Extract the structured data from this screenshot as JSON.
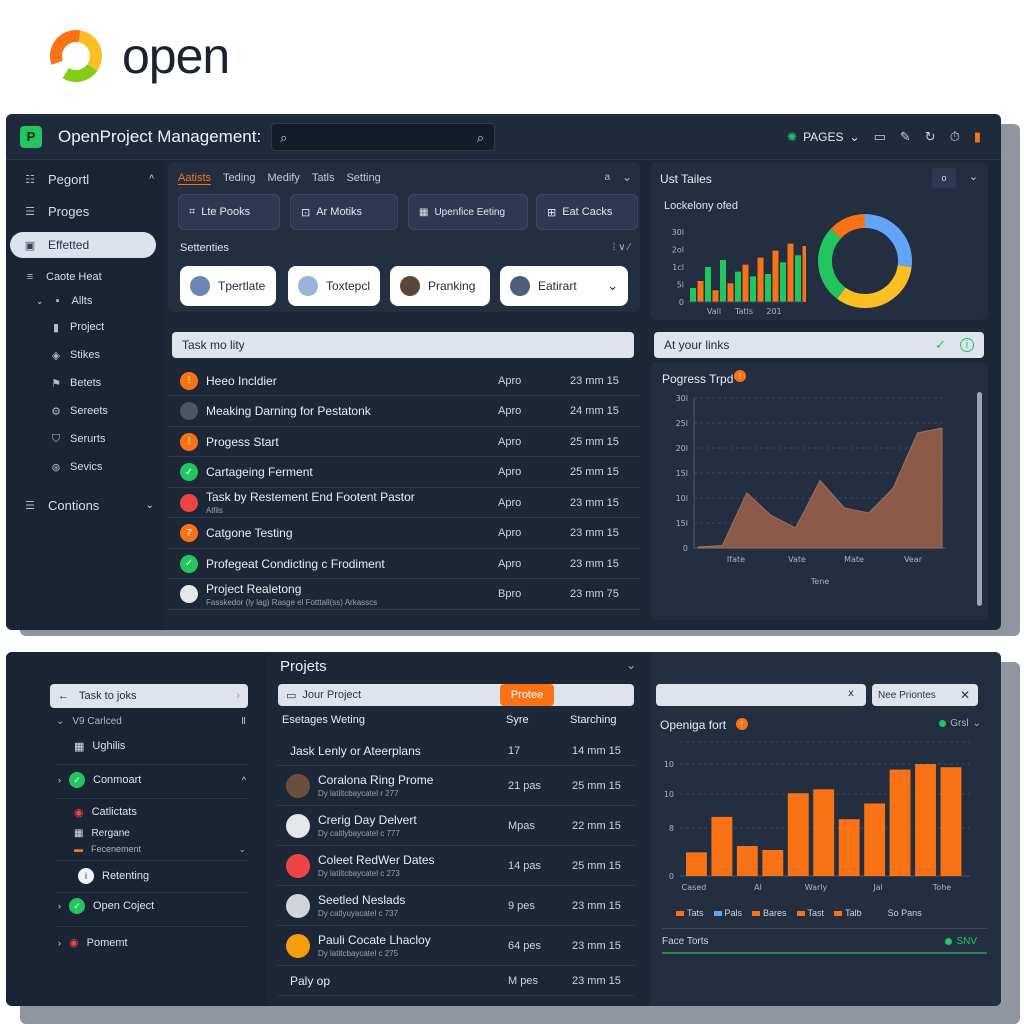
{
  "brand": {
    "name": "open"
  },
  "window": {
    "app_title": "OpenProject Management:",
    "search_placeholder": "",
    "pages_label": "PAGES"
  },
  "sidebar": {
    "items": [
      {
        "label": "Pegortl",
        "arrow": "^"
      },
      {
        "label": "Proges"
      },
      {
        "label": "Effetted"
      },
      {
        "label": "Caote Heat"
      },
      {
        "label": "Allts"
      },
      {
        "label": "Project"
      },
      {
        "label": "Stikes"
      },
      {
        "label": "Betets"
      },
      {
        "label": "Sereets"
      },
      {
        "label": "Serurts"
      },
      {
        "label": "Sevics"
      },
      {
        "label": "Contions"
      }
    ]
  },
  "top_panel": {
    "tabs": [
      "Aatists",
      "Teding",
      "Medify",
      "Tatls",
      "Setting"
    ],
    "chips": [
      "Lte Pooks",
      "Ar Motiks",
      "Upenfice Eeting",
      "Eat Cacks"
    ],
    "settings_label": "Settenties",
    "pills": [
      "Tpertlate",
      "Toxtepcl",
      "Pranking",
      "Eatirart"
    ]
  },
  "tasks": {
    "header": "Task mo lity",
    "rows": [
      {
        "name": "Heeo Incldier",
        "c1": "Apro",
        "c2": "23 mm 15",
        "color": "#f97316",
        "glyph": "!"
      },
      {
        "name": "Meaking Darning for Pestatonk",
        "c1": "Apro",
        "c2": "24 mm 15",
        "color": "#4b5563",
        "glyph": ""
      },
      {
        "name": "Progess Start",
        "c1": "Apro",
        "c2": "25 mm 15",
        "color": "#f97316",
        "glyph": "!"
      },
      {
        "name": "Cartageing Ferment",
        "c1": "Apro",
        "c2": "25 mm 15",
        "color": "#22c55e",
        "glyph": "✓"
      },
      {
        "name": "Task by Restement End Footent Pastor",
        "sub": "Alfils",
        "c1": "Apro",
        "c2": "23 mm 15",
        "color": "#ef4444",
        "glyph": ""
      },
      {
        "name": "Catgone Testing",
        "c1": "Apro",
        "c2": "23 mm 15",
        "color": "#f97316",
        "glyph": "7"
      },
      {
        "name": "Profegeat Condicting c Frodiment",
        "c1": "Apro",
        "c2": "23 mm 15",
        "color": "#22c55e",
        "glyph": "✓"
      },
      {
        "name": "Project Realetong",
        "sub": "Fasskedor (ly lag) Rasge el Fotttall(ss) Arkasscs",
        "c1": "Bpro",
        "c2": "23 mm 75",
        "color": "#e5e7eb",
        "glyph": ""
      }
    ]
  },
  "donut_panel": {
    "title": "Ust Tailes",
    "chart_title": "Lockelony ofed",
    "y_ticks": [
      "30l",
      "2ol",
      "1cl",
      "5l",
      "0"
    ],
    "x_ticks": [
      "Vall",
      "Tatls",
      "201"
    ]
  },
  "progress_panel": {
    "header": "At your links",
    "title": "Pogress Trpd",
    "y_ticks": [
      "30l",
      "25l",
      "20l",
      "15l",
      "10l",
      "15l",
      "0"
    ],
    "x_ticks": [
      "Ifate",
      "Vate",
      "Mate",
      "Vear"
    ],
    "xlabel": "Tene"
  },
  "bottom_sidebar": {
    "search": "Task to joks",
    "items": [
      {
        "label": "V9 Carlced",
        "arrow": "Ⅱ"
      },
      {
        "label": "Ughilis"
      },
      {
        "label": "Conmoart"
      },
      {
        "label": "Catlictats"
      },
      {
        "label": "Rergane"
      },
      {
        "label": "Fecenement"
      },
      {
        "label": "Retenting"
      },
      {
        "label": "Open Coject"
      },
      {
        "label": "Pomemt"
      }
    ]
  },
  "projects": {
    "title": "Projets",
    "search_value": "Jour Project",
    "button": "Protee",
    "col_name": "Esetages Weting",
    "col_c1": "Syre",
    "col_c2": "Starching",
    "rows": [
      {
        "name": "Jask Lenly or Ateerplans",
        "sub": "",
        "c1": "17",
        "c2": "14 mm 15"
      },
      {
        "name": "Coralona Ring Prome",
        "sub": "Dy latiltcbaycatel r 277",
        "c1": "21 pas",
        "c2": "25 mm 15"
      },
      {
        "name": "Crerig Day Delvert",
        "sub": "Dy caltlybaycatel c 777",
        "c1": "Mpas",
        "c2": "22 mm 15"
      },
      {
        "name": "Coleet RedWer Dates",
        "sub": "Dy latiltcbaycatel c 273",
        "c1": "14 pas",
        "c2": "25 mm 15"
      },
      {
        "name": "Seetled Neslads",
        "sub": "Dy catlyuyacatel c 737",
        "c1": "9 pes",
        "c2": "23 mm 15"
      },
      {
        "name": "Pauli Cocate Lhacloy",
        "sub": "Dy latitcbaycatel c 275",
        "c1": "64 pes",
        "c2": "23 mm 15"
      },
      {
        "name": "Paly op",
        "sub": "",
        "c1": "M pes",
        "c2": "23 mm 15"
      }
    ]
  },
  "bar_panel": {
    "filter": "Nee Priontes",
    "title": "Openiga fort",
    "grid_label": "Grsl",
    "footer_left": "Face Torts",
    "footer_right": "SNV",
    "legend": [
      "Tats",
      "Pals",
      "Bares",
      "Tast",
      "Talb",
      "So Pans"
    ]
  },
  "chart_data": [
    {
      "type": "bar",
      "title": "Lockelony ofed",
      "series": [
        {
          "values": [
            6,
            9,
            15,
            5,
            18,
            8,
            13,
            16,
            11,
            19,
            12,
            22,
            17,
            25,
            20,
            24
          ]
        }
      ],
      "y_ticks": [
        "30l",
        "2ol",
        "1cl",
        "5l",
        "0"
      ],
      "x_ticks": [
        "Vall",
        "Tatls",
        "201"
      ],
      "colors": [
        "#22c55e",
        "#f97316"
      ]
    },
    {
      "type": "pie",
      "donut": true,
      "slices": [
        {
          "value": 27,
          "color": "#60a5fa"
        },
        {
          "value": 33,
          "color": "#fbbf24"
        },
        {
          "value": 27,
          "color": "#22c55e"
        },
        {
          "value": 13,
          "color": "#f97316"
        }
      ]
    },
    {
      "type": "area",
      "title": "Pogress Trpd",
      "x": [
        0,
        1,
        2,
        3,
        4,
        5,
        6,
        7,
        8,
        9,
        10
      ],
      "values": [
        0.2,
        0.5,
        11,
        6.5,
        4,
        13.5,
        8,
        7,
        12,
        23,
        24
      ],
      "ylim": [
        0,
        30
      ],
      "y_ticks": [
        "30l",
        "25l",
        "20l",
        "15l",
        "10l",
        "15l",
        "0"
      ],
      "x_ticks": [
        "Ifate",
        "Vate",
        "Mate",
        "Vear"
      ],
      "xlabel": "Tene",
      "color": "#8b5a48"
    },
    {
      "type": "bar",
      "title": "Openiga fort",
      "values": [
        3,
        7.5,
        3.8,
        3.3,
        10.5,
        11,
        7.2,
        9.2,
        13.5,
        14.2,
        13.8
      ],
      "ylim": [
        0,
        17
      ],
      "y_ticks": [
        "10",
        "10",
        "8",
        "0"
      ],
      "x_ticks": [
        "Cased",
        "Al",
        "Warly",
        "Jal",
        "Tohe"
      ],
      "color": "#f97316"
    }
  ]
}
